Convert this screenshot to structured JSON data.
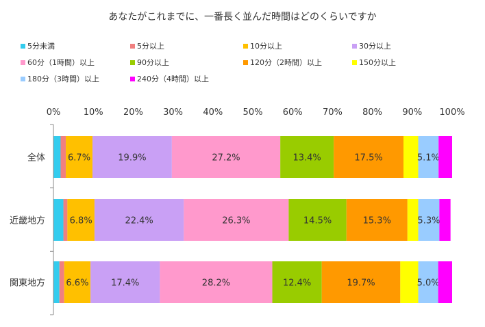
{
  "chart_data": {
    "type": "bar",
    "orientation": "horizontal",
    "stacked": "percent",
    "title": "あなたがこれまでに、一番長く並んだ時間はどのくらいですか",
    "categories": [
      "全体",
      "近畿地方",
      "関東地方"
    ],
    "x_ticks": [
      "0%",
      "10%",
      "20%",
      "30%",
      "40%",
      "50%",
      "60%",
      "70%",
      "80%",
      "90%",
      "100%"
    ],
    "xlim": [
      0,
      100
    ],
    "legend_position": "top",
    "series": [
      {
        "name": "5分未満",
        "color": "#33CCEE",
        "values": [
          1.8,
          2.5,
          1.5
        ]
      },
      {
        "name": "5分以上",
        "color": "#F08080",
        "values": [
          1.3,
          1.0,
          1.2
        ]
      },
      {
        "name": "10分以上",
        "color": "#FFC000",
        "values": [
          6.7,
          6.8,
          6.6
        ]
      },
      {
        "name": "30分以上",
        "color": "#C9A0F5",
        "values": [
          19.9,
          22.4,
          17.4
        ]
      },
      {
        "name": "60分（1時間）以上",
        "color": "#FF99CC",
        "values": [
          27.2,
          26.3,
          28.2
        ]
      },
      {
        "name": "90分以上",
        "color": "#99CC00",
        "values": [
          13.4,
          14.5,
          12.4
        ]
      },
      {
        "name": "120分（2時間）以上",
        "color": "#FF9900",
        "values": [
          17.5,
          15.3,
          19.7
        ]
      },
      {
        "name": "150分以上",
        "color": "#FFFF00",
        "values": [
          3.7,
          2.7,
          4.5
        ]
      },
      {
        "name": "180分（3時間）以上",
        "color": "#99CCFF",
        "values": [
          5.1,
          5.3,
          5.0
        ]
      },
      {
        "name": "240分（4時間）以上",
        "color": "#FF00FF",
        "values": [
          3.4,
          2.8,
          3.5
        ]
      }
    ],
    "data_labels": [
      [
        "",
        "",
        "6.7%",
        "19.9%",
        "27.2%",
        "13.4%",
        "17.5%",
        "",
        "5.1%",
        ""
      ],
      [
        "",
        "",
        "6.8%",
        "22.4%",
        "26.3%",
        "14.5%",
        "15.3%",
        "",
        "5.3%",
        ""
      ],
      [
        "",
        "",
        "6.6%",
        "17.4%",
        "28.2%",
        "12.4%",
        "19.7%",
        "",
        "5.0%",
        ""
      ]
    ]
  }
}
